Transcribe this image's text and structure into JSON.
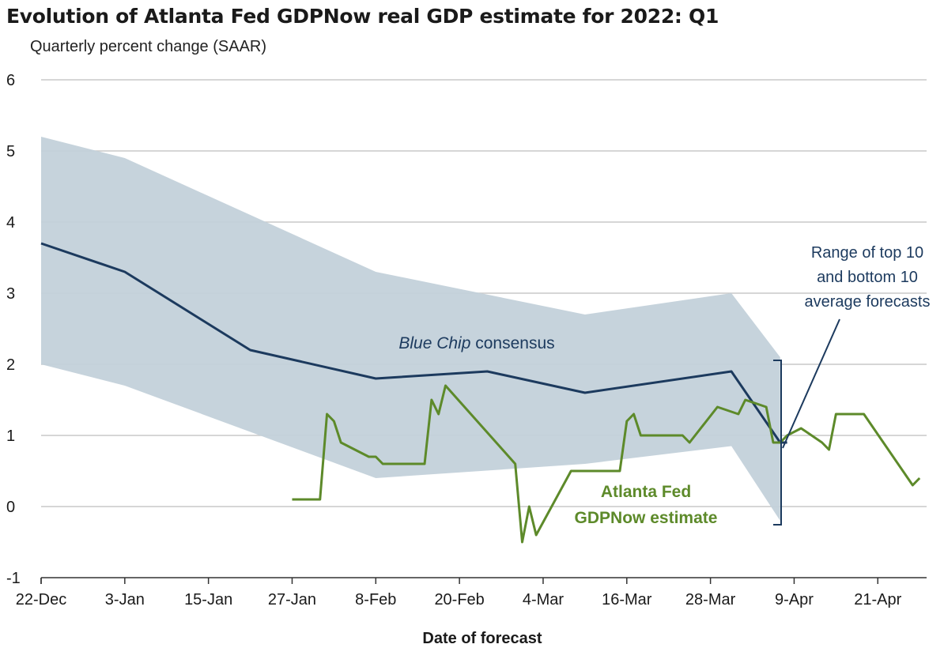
{
  "chart_data": {
    "type": "line",
    "title": "Evolution of Atlanta Fed GDPNow real GDP estimate for 2022: Q1",
    "subtitle": "Quarterly percent change (SAAR)",
    "xlabel": "Date of forecast",
    "ylabel": "",
    "ylim": [
      -1,
      6
    ],
    "yticks": [
      -1,
      0,
      1,
      2,
      3,
      4,
      5,
      6
    ],
    "xlim": [
      "2021-12-22",
      "2022-04-28"
    ],
    "xticks": [
      {
        "date": "2021-12-22",
        "label": "22-Dec"
      },
      {
        "date": "2022-01-03",
        "label": "3-Jan"
      },
      {
        "date": "2022-01-15",
        "label": "15-Jan"
      },
      {
        "date": "2022-01-27",
        "label": "27-Jan"
      },
      {
        "date": "2022-02-08",
        "label": "8-Feb"
      },
      {
        "date": "2022-02-20",
        "label": "20-Feb"
      },
      {
        "date": "2022-03-04",
        "label": "4-Mar"
      },
      {
        "date": "2022-03-16",
        "label": "16-Mar"
      },
      {
        "date": "2022-03-28",
        "label": "28-Mar"
      },
      {
        "date": "2022-04-09",
        "label": "9-Apr"
      },
      {
        "date": "2022-04-21",
        "label": "21-Apr"
      }
    ],
    "grid": true,
    "colors": {
      "band": "#c3d1da",
      "consensus": "#1c3a5e",
      "gdpnow": "#5d8a2a",
      "grid": "#c8c8c8",
      "axis": "#333333",
      "bracket": "#1c3a5e"
    },
    "band": {
      "x": [
        "2021-12-22",
        "2022-01-03",
        "2022-02-08",
        "2022-03-10",
        "2022-03-31",
        "2022-04-07"
      ],
      "upper": [
        5.2,
        4.9,
        3.3,
        2.7,
        3.0,
        2.1
      ],
      "lower": [
        2.0,
        1.7,
        0.4,
        0.6,
        0.85,
        -0.2
      ]
    },
    "series": [
      {
        "key": "consensus",
        "x": [
          "2021-12-22",
          "2022-01-03",
          "2022-01-21",
          "2022-02-08",
          "2022-02-24",
          "2022-03-10",
          "2022-03-31",
          "2022-04-07",
          "2022-04-08"
        ],
        "values": [
          3.7,
          3.3,
          2.2,
          1.8,
          1.9,
          1.6,
          1.9,
          0.9,
          0.9
        ]
      },
      {
        "key": "gdpnow",
        "x": [
          "2022-01-27",
          "2022-01-31",
          "2022-02-01",
          "2022-02-02",
          "2022-02-03",
          "2022-02-07",
          "2022-02-08",
          "2022-02-09",
          "2022-02-15",
          "2022-02-16",
          "2022-02-17",
          "2022-02-18",
          "2022-02-28",
          "2022-03-01",
          "2022-03-02",
          "2022-03-03",
          "2022-03-08",
          "2022-03-15",
          "2022-03-16",
          "2022-03-17",
          "2022-03-18",
          "2022-03-24",
          "2022-03-25",
          "2022-03-29",
          "2022-04-01",
          "2022-04-02",
          "2022-04-05",
          "2022-04-06",
          "2022-04-07",
          "2022-04-08",
          "2022-04-10",
          "2022-04-13",
          "2022-04-14",
          "2022-04-15",
          "2022-04-19",
          "2022-04-26",
          "2022-04-27"
        ],
        "values": [
          0.1,
          0.1,
          1.3,
          1.2,
          0.9,
          0.7,
          0.7,
          0.6,
          0.6,
          1.5,
          1.3,
          1.7,
          0.6,
          -0.5,
          0.0,
          -0.4,
          0.5,
          0.5,
          1.2,
          1.3,
          1.0,
          1.0,
          0.9,
          1.4,
          1.3,
          1.5,
          1.4,
          0.9,
          0.9,
          1.0,
          1.1,
          0.9,
          0.8,
          1.3,
          1.3,
          0.3,
          0.4
        ]
      }
    ],
    "annotations": {
      "consensus_label_prefix": "Blue Chip",
      "consensus_label_suffix": " consensus",
      "gdpnow_label_line1": "Atlanta Fed",
      "gdpnow_label_line2": "GDPNow estimate",
      "range_label_line1": "Range of top 10",
      "range_label_line2": "and bottom 10",
      "range_label_line3": "average forecasts"
    }
  }
}
